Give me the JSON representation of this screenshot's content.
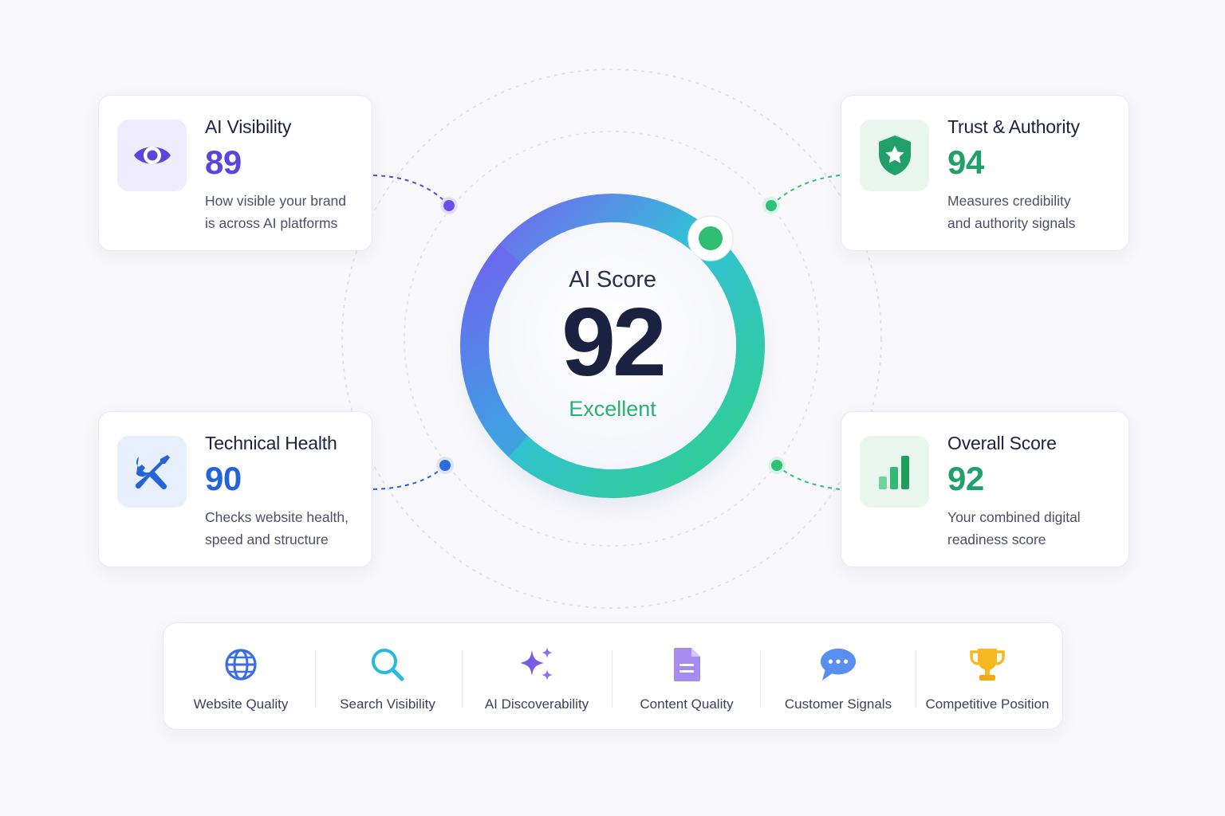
{
  "gauge": {
    "label": "AI Score",
    "score": "92",
    "status": "Excellent",
    "progress_fraction": 0.92
  },
  "cards": {
    "visibility": {
      "title": "AI Visibility",
      "score": "89",
      "desc_line1": "How visible your brand",
      "desc_line2": "is across AI platforms",
      "icon": "eye-icon",
      "accent": "#5b45dd"
    },
    "trust": {
      "title": "Trust & Authority",
      "score": "94",
      "desc_line1": "Measures credibility",
      "desc_line2": "and authority signals",
      "icon": "shield-star-icon",
      "accent": "#22a06b"
    },
    "technical": {
      "title": "Technical Health",
      "score": "90",
      "desc_line1": "Checks website health,",
      "desc_line2": "speed and structure",
      "icon": "tools-icon",
      "accent": "#2563d9"
    },
    "overall": {
      "title": "Overall Score",
      "score": "92",
      "desc_line1": "Your combined digital",
      "desc_line2": "readiness score",
      "icon": "bar-chart-icon",
      "accent": "#22a06b"
    }
  },
  "factors": [
    {
      "label": "Website Quality",
      "icon": "globe-icon"
    },
    {
      "label": "Search Visibility",
      "icon": "search-icon"
    },
    {
      "label": "AI Discoverability",
      "icon": "sparkles-icon"
    },
    {
      "label": "Content Quality",
      "icon": "document-icon"
    },
    {
      "label": "Customer Signals",
      "icon": "chat-bubble-icon"
    },
    {
      "label": "Competitive Position",
      "icon": "trophy-icon"
    }
  ],
  "colors": {
    "gradient_start": "#7a5cf0",
    "gradient_mid": "#2ec4c4",
    "gradient_end": "#2fcf7f",
    "purple": "#5b45dd",
    "green": "#22a06b",
    "blue": "#2563d9"
  }
}
